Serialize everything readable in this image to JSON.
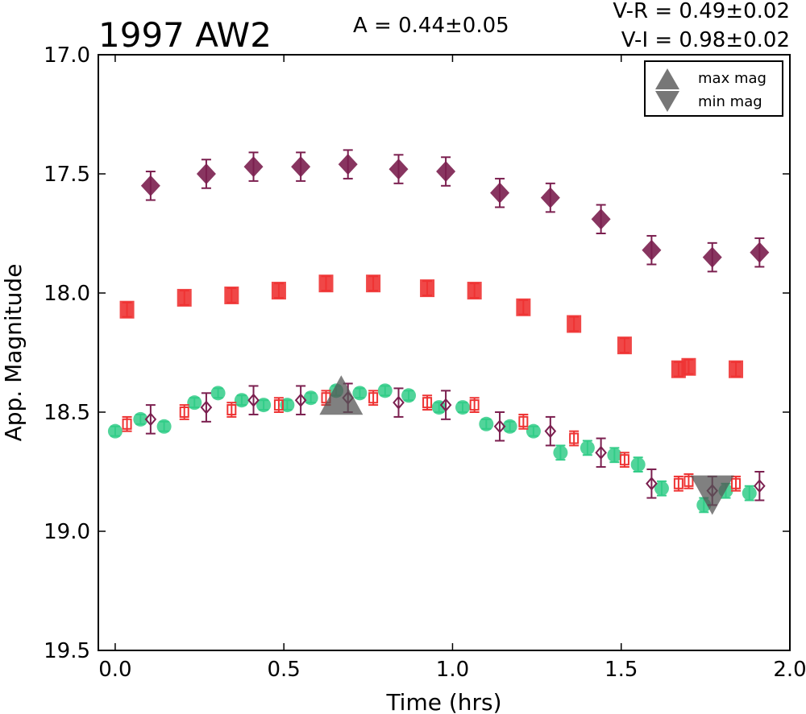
{
  "chart_data": {
    "type": "scatter",
    "title": "1997 AW2",
    "amplitude_label": "A  = 0.44±0.05",
    "color_labels": [
      "V-R = 0.49±0.02",
      "V-I  = 0.98±0.02"
    ],
    "xlabel": "Time (hrs)",
    "ylabel": "App. Magnitude",
    "xlim": [
      -0.05,
      2.0
    ],
    "ylim": [
      17.0,
      19.5
    ],
    "y_inverted": true,
    "x_ticks": [
      "0.0",
      "0.5",
      "1.0",
      "1.5",
      "2.0"
    ],
    "y_ticks": [
      "17.0",
      "17.5",
      "18.0",
      "18.5",
      "19.0",
      "19.5"
    ],
    "legend": {
      "placement": "top-right",
      "entries": [
        {
          "label": "max mag",
          "marker": "triangle-up",
          "color": "#777777"
        },
        {
          "label": "min mag",
          "marker": "triangle-down",
          "color": "#777777"
        }
      ]
    },
    "series": [
      {
        "marker": "diamond-filled",
        "color": "#7b1f4f",
        "x": [
          0.105,
          0.27,
          0.41,
          0.55,
          0.69,
          0.84,
          0.98,
          1.14,
          1.29,
          1.44,
          1.59,
          1.77,
          1.91
        ],
        "y": [
          17.55,
          17.5,
          17.47,
          17.47,
          17.46,
          17.48,
          17.49,
          17.58,
          17.6,
          17.69,
          17.82,
          17.85,
          17.83
        ],
        "err": [
          0.06,
          0.06,
          0.06,
          0.06,
          0.06,
          0.06,
          0.06,
          0.06,
          0.06,
          0.06,
          0.06,
          0.06,
          0.06
        ]
      },
      {
        "marker": "square-filled",
        "color": "#ee3333",
        "x": [
          0.035,
          0.205,
          0.345,
          0.485,
          0.625,
          0.765,
          0.925,
          1.065,
          1.21,
          1.36,
          1.51,
          1.67,
          1.7,
          1.84
        ],
        "y": [
          18.07,
          18.02,
          18.01,
          17.99,
          17.96,
          17.96,
          17.98,
          17.99,
          18.06,
          18.13,
          18.22,
          18.32,
          18.31,
          18.32
        ],
        "err": [
          0.03,
          0.03,
          0.03,
          0.03,
          0.03,
          0.03,
          0.03,
          0.03,
          0.03,
          0.03,
          0.03,
          0.03,
          0.03,
          0.03
        ]
      },
      {
        "marker": "circle-filled",
        "color": "#33cc88",
        "x": [
          0.0,
          0.075,
          0.145,
          0.235,
          0.305,
          0.375,
          0.44,
          0.51,
          0.58,
          0.655,
          0.725,
          0.8,
          0.87,
          0.96,
          1.03,
          1.1,
          1.17,
          1.24,
          1.32,
          1.4,
          1.48,
          1.55,
          1.62,
          1.745,
          1.81,
          1.88
        ],
        "y": [
          18.58,
          18.53,
          18.56,
          18.46,
          18.42,
          18.45,
          18.47,
          18.47,
          18.44,
          18.41,
          18.42,
          18.41,
          18.43,
          18.48,
          18.48,
          18.55,
          18.56,
          18.58,
          18.67,
          18.65,
          18.68,
          18.72,
          18.82,
          18.89,
          18.83,
          18.84
        ],
        "err": [
          0.02,
          0.02,
          0.02,
          0.02,
          0.02,
          0.02,
          0.02,
          0.02,
          0.02,
          0.02,
          0.02,
          0.02,
          0.02,
          0.02,
          0.02,
          0.02,
          0.02,
          0.02,
          0.03,
          0.03,
          0.03,
          0.03,
          0.03,
          0.03,
          0.03,
          0.03
        ]
      },
      {
        "marker": "square-open",
        "color": "#ee3333",
        "x": [
          0.035,
          0.205,
          0.345,
          0.485,
          0.625,
          0.765,
          0.925,
          1.065,
          1.21,
          1.36,
          1.51,
          1.67,
          1.7,
          1.84
        ],
        "y": [
          18.55,
          18.5,
          18.49,
          18.47,
          18.44,
          18.44,
          18.46,
          18.47,
          18.54,
          18.61,
          18.7,
          18.8,
          18.79,
          18.8
        ],
        "err": [
          0.03,
          0.03,
          0.03,
          0.03,
          0.03,
          0.03,
          0.03,
          0.03,
          0.03,
          0.03,
          0.03,
          0.03,
          0.03,
          0.03
        ]
      },
      {
        "marker": "diamond-open",
        "color": "#7b1f4f",
        "x": [
          0.105,
          0.27,
          0.41,
          0.55,
          0.69,
          0.84,
          0.98,
          1.14,
          1.29,
          1.44,
          1.59,
          1.77,
          1.91
        ],
        "y": [
          18.53,
          18.48,
          18.45,
          18.45,
          18.44,
          18.46,
          18.47,
          18.56,
          18.58,
          18.67,
          18.8,
          18.83,
          18.81
        ],
        "err": [
          0.06,
          0.06,
          0.06,
          0.06,
          0.06,
          0.06,
          0.06,
          0.06,
          0.06,
          0.06,
          0.06,
          0.06,
          0.06
        ]
      }
    ],
    "markers": [
      {
        "type": "max",
        "x": 0.67,
        "y": 18.43
      },
      {
        "type": "min",
        "x": 1.77,
        "y": 18.85
      }
    ]
  }
}
